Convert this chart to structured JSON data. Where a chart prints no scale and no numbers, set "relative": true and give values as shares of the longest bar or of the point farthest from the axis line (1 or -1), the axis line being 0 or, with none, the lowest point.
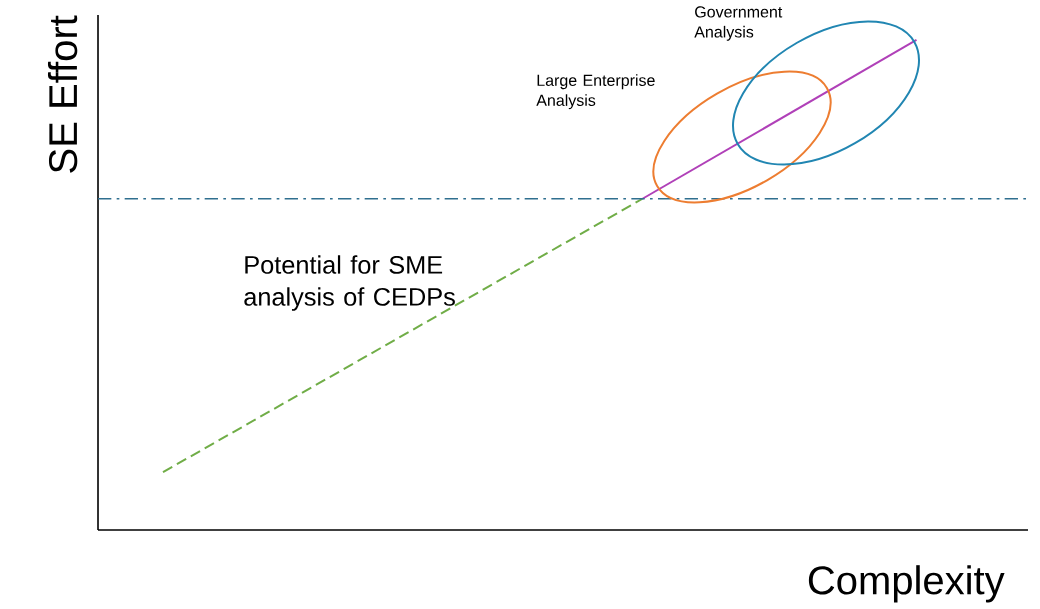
{
  "chart_data": {
    "type": "line",
    "relative": true,
    "xlabel": "Complexity",
    "ylabel": "SE Effort",
    "categories": [
      null,
      null,
      null,
      null,
      null,
      null,
      null,
      null,
      null,
      null,
      null,
      null
    ],
    "series": [
      {
        "color": "#70ad47",
        "line_style": "dashed",
        "values": [
          0.118,
          null,
          null,
          null,
          null,
          null,
          null,
          0.676,
          null,
          null,
          null,
          null
        ]
      },
      {
        "color": "#b040b8",
        "line_style": "solid",
        "values": [
          null,
          null,
          null,
          null,
          null,
          null,
          null,
          0.676,
          null,
          null,
          null,
          1
        ]
      }
    ],
    "ref_lines": [
      {
        "axis": "y",
        "value": 0.676,
        "color": "#2f6f8f",
        "line_style": "dashdot"
      }
    ],
    "annotations": [
      "Potential for SME analysis of CEDPs",
      "Large Enterprise Analysis",
      "Government Analysis"
    ]
  }
}
